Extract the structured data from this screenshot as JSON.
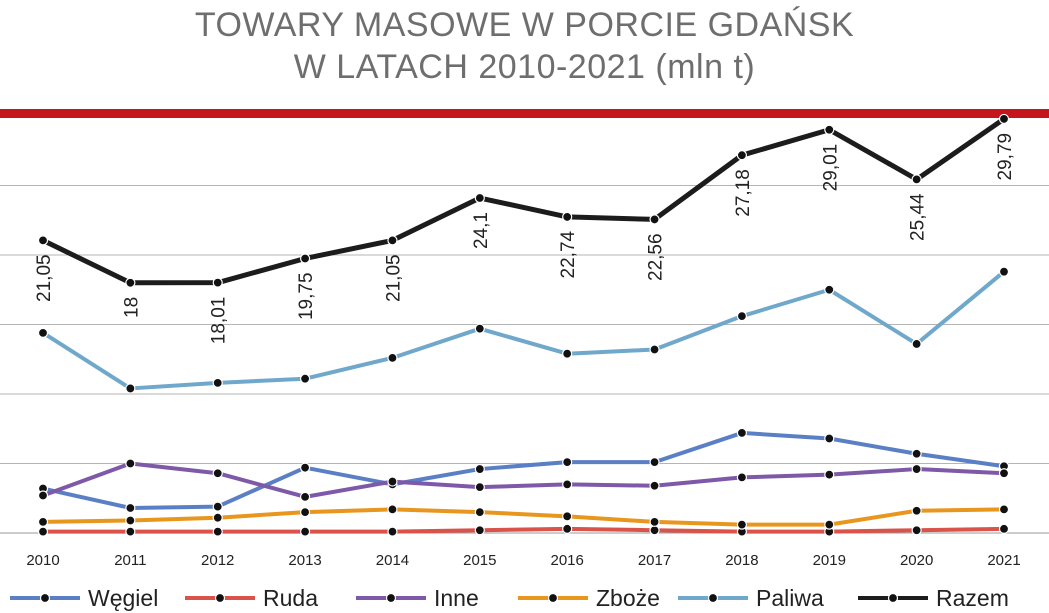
{
  "title_line1": "TOWARY MASOWE W PORCIE GDAŃSK",
  "title_line2": "W LATACH 2010-2021 (mln t)",
  "chart_data": {
    "type": "line",
    "title": "TOWARY MASOWE W PORCIE GDAŃSK W LATACH 2010-2021 (mln t)",
    "xlabel": "",
    "ylabel": "",
    "ylim": [
      0,
      30
    ],
    "grid": true,
    "legend_position": "bottom",
    "categories": [
      "2010",
      "2011",
      "2012",
      "2013",
      "2014",
      "2015",
      "2016",
      "2017",
      "2018",
      "2019",
      "2020",
      "2021"
    ],
    "series": [
      {
        "name": "Węgiel",
        "color": "#5b7fc4",
        "values": [
          3.2,
          1.8,
          1.9,
          4.7,
          3.5,
          4.6,
          5.1,
          5.1,
          7.2,
          6.8,
          5.7,
          4.8
        ],
        "labels": []
      },
      {
        "name": "Ruda",
        "color": "#d9534a",
        "values": [
          0.1,
          0.1,
          0.1,
          0.1,
          0.1,
          0.2,
          0.3,
          0.2,
          0.1,
          0.1,
          0.2,
          0.3
        ],
        "labels": []
      },
      {
        "name": "Inne",
        "color": "#7e59a8",
        "values": [
          2.7,
          5.0,
          4.3,
          2.6,
          3.7,
          3.3,
          3.5,
          3.4,
          4.0,
          4.2,
          4.6,
          4.3
        ],
        "labels": []
      },
      {
        "name": "Zboże",
        "color": "#e8961e",
        "values": [
          0.8,
          0.9,
          1.1,
          1.5,
          1.7,
          1.5,
          1.2,
          0.8,
          0.6,
          0.6,
          1.6,
          1.7
        ],
        "labels": []
      },
      {
        "name": "Paliwa",
        "color": "#6fa8cb",
        "values": [
          14.4,
          10.4,
          10.8,
          11.1,
          12.6,
          14.7,
          12.9,
          13.2,
          15.6,
          17.5,
          13.6,
          18.8
        ],
        "labels": []
      },
      {
        "name": "Razem",
        "color": "#1c1c1c",
        "values": [
          21.05,
          18.0,
          18.01,
          19.75,
          21.05,
          24.1,
          22.74,
          22.56,
          27.18,
          29.01,
          25.44,
          29.79
        ],
        "labels": [
          "21,05",
          "18",
          "18,01",
          "19,75",
          "21,05",
          "24,1",
          "22,74",
          "22,56",
          "27,18",
          "29,01",
          "25,44",
          "29,79"
        ]
      }
    ]
  }
}
